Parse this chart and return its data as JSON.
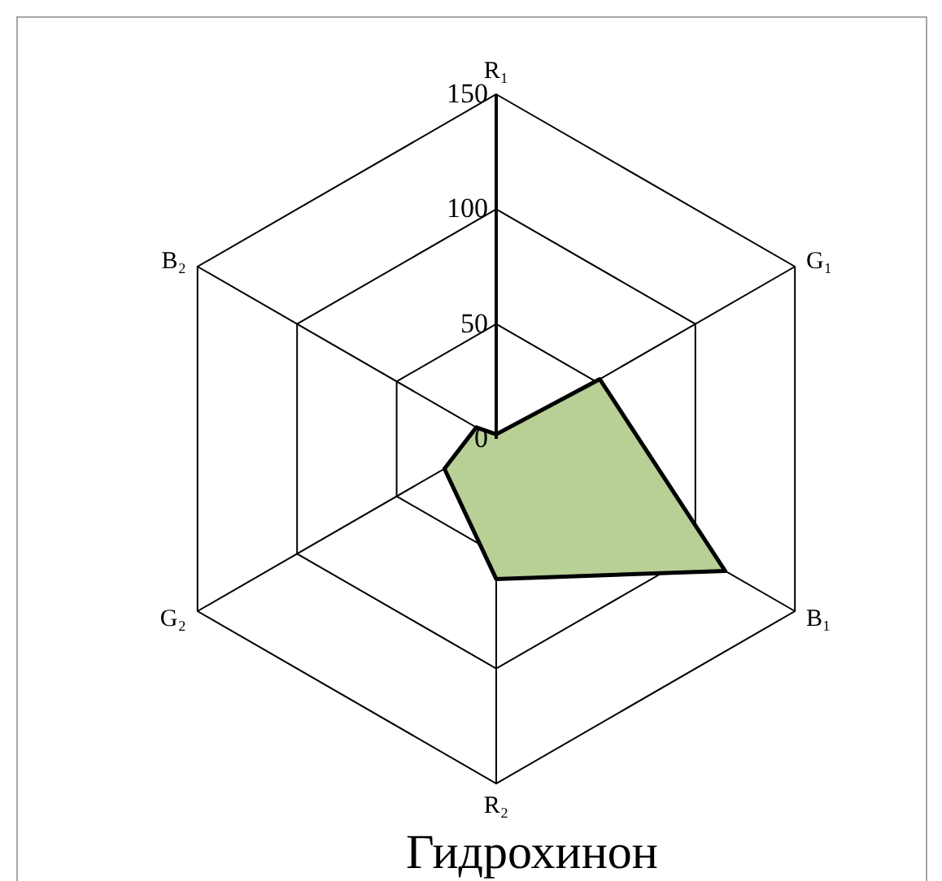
{
  "chart_data": {
    "type": "radar",
    "title": "Гидрохинон",
    "categories": [
      "R₁",
      "G₁",
      "B₁",
      "R₂",
      "G₂",
      "B₂"
    ],
    "series": [
      {
        "color": "#b8cf96",
        "values": [
          2,
          52,
          115,
          61,
          26,
          10
        ]
      }
    ],
    "ylim": [
      0,
      150
    ],
    "yticks": [
      0,
      50,
      100,
      150
    ],
    "grid": true
  }
}
